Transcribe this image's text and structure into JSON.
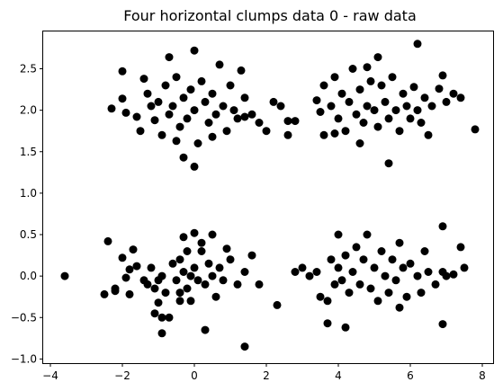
{
  "chart_data": {
    "type": "scatter",
    "title": "Four horizontal clumps data 0 - raw data",
    "xlabel": "",
    "ylabel": "",
    "xlim": [
      -4.2,
      8.3
    ],
    "ylim": [
      -1.05,
      2.95
    ],
    "grid": false,
    "legend": "none",
    "marker_color": "#000000",
    "x_ticks": [
      {
        "value": -4,
        "label": "−4"
      },
      {
        "value": -2,
        "label": "−2"
      },
      {
        "value": 0,
        "label": "0"
      },
      {
        "value": 2,
        "label": "2"
      },
      {
        "value": 4,
        "label": "4"
      },
      {
        "value": 6,
        "label": "6"
      },
      {
        "value": 8,
        "label": "8"
      }
    ],
    "y_ticks": [
      {
        "value": -1.0,
        "label": "−1.0"
      },
      {
        "value": -0.5,
        "label": "−0.5"
      },
      {
        "value": 0.0,
        "label": "0.0"
      },
      {
        "value": 0.5,
        "label": "0.5"
      },
      {
        "value": 1.0,
        "label": "1.0"
      },
      {
        "value": 1.5,
        "label": "1.5"
      },
      {
        "value": 2.0,
        "label": "2.0"
      },
      {
        "value": 2.5,
        "label": "2.5"
      }
    ],
    "series": [
      {
        "color": "#000000",
        "points": [
          [
            -3.6,
            0.0
          ],
          [
            -2.4,
            0.42
          ],
          [
            -2.5,
            -0.22
          ],
          [
            -2.2,
            -0.18
          ],
          [
            -2.2,
            -0.15
          ],
          [
            -2.0,
            0.22
          ],
          [
            -1.9,
            -0.02
          ],
          [
            -1.8,
            -0.22
          ],
          [
            -1.8,
            0.08
          ],
          [
            -1.7,
            0.32
          ],
          [
            -1.6,
            0.12
          ],
          [
            -1.4,
            -0.05
          ],
          [
            -1.3,
            -0.1
          ],
          [
            -1.2,
            0.1
          ],
          [
            -1.1,
            -0.15
          ],
          [
            -1.0,
            -0.32
          ],
          [
            -1.0,
            -0.05
          ],
          [
            -0.9,
            0.0
          ],
          [
            -0.8,
            -0.2
          ],
          [
            -0.9,
            -0.5
          ],
          [
            -1.1,
            -0.45
          ],
          [
            -0.7,
            -0.5
          ],
          [
            -0.6,
            0.15
          ],
          [
            -0.4,
            0.2
          ],
          [
            -0.5,
            -0.05
          ],
          [
            -0.4,
            -0.2
          ],
          [
            -0.3,
            0.05
          ],
          [
            -0.2,
            -0.15
          ],
          [
            -0.1,
            0.0
          ],
          [
            -0.1,
            -0.3
          ],
          [
            0.0,
            0.1
          ],
          [
            0.1,
            -0.05
          ],
          [
            0.2,
            0.3
          ],
          [
            0.3,
            -0.1
          ],
          [
            0.4,
            0.15
          ],
          [
            0.5,
            0.0
          ],
          [
            0.6,
            -0.25
          ],
          [
            0.7,
            0.1
          ],
          [
            0.8,
            -0.05
          ],
          [
            1.0,
            0.2
          ],
          [
            1.2,
            -0.1
          ],
          [
            1.4,
            0.05
          ],
          [
            1.6,
            0.25
          ],
          [
            1.8,
            -0.1
          ],
          [
            0.3,
            -0.65
          ],
          [
            -0.3,
            0.47
          ],
          [
            0.0,
            0.52
          ],
          [
            0.5,
            0.5
          ],
          [
            -0.4,
            -0.3
          ],
          [
            1.4,
            -0.85
          ],
          [
            2.3,
            -0.35
          ],
          [
            -0.9,
            -0.69
          ],
          [
            0.2,
            0.4
          ],
          [
            -0.2,
            0.3
          ],
          [
            0.9,
            0.33
          ],
          [
            2.8,
            0.05
          ],
          [
            3.0,
            0.1
          ],
          [
            3.2,
            0.0
          ],
          [
            3.4,
            0.05
          ],
          [
            3.5,
            -0.25
          ],
          [
            3.7,
            -0.3
          ],
          [
            3.8,
            0.2
          ],
          [
            3.9,
            -0.1
          ],
          [
            4.0,
            0.1
          ],
          [
            4.1,
            -0.05
          ],
          [
            4.2,
            0.25
          ],
          [
            4.3,
            -0.2
          ],
          [
            4.4,
            0.05
          ],
          [
            4.5,
            0.35
          ],
          [
            4.6,
            -0.1
          ],
          [
            4.7,
            0.2
          ],
          [
            4.8,
            0.5
          ],
          [
            4.9,
            -0.15
          ],
          [
            5.0,
            0.1
          ],
          [
            5.1,
            -0.3
          ],
          [
            5.2,
            0.3
          ],
          [
            5.3,
            0.0
          ],
          [
            5.4,
            -0.2
          ],
          [
            5.5,
            0.2
          ],
          [
            5.6,
            -0.05
          ],
          [
            5.7,
            0.4
          ],
          [
            5.8,
            0.1
          ],
          [
            5.9,
            -0.25
          ],
          [
            6.0,
            0.15
          ],
          [
            6.2,
            0.0
          ],
          [
            6.3,
            -0.2
          ],
          [
            6.4,
            0.3
          ],
          [
            6.5,
            0.05
          ],
          [
            6.7,
            -0.1
          ],
          [
            6.9,
            0.05
          ],
          [
            7.0,
            0.0
          ],
          [
            7.2,
            0.02
          ],
          [
            7.4,
            0.35
          ],
          [
            7.5,
            0.1
          ],
          [
            6.9,
            -0.58
          ],
          [
            6.9,
            0.6
          ],
          [
            4.0,
            0.5
          ],
          [
            3.7,
            -0.57
          ],
          [
            4.2,
            -0.62
          ],
          [
            5.7,
            -0.38
          ],
          [
            -2.3,
            2.02
          ],
          [
            -2.0,
            2.47
          ],
          [
            -2.0,
            2.14
          ],
          [
            -1.9,
            1.97
          ],
          [
            -1.6,
            1.92
          ],
          [
            -1.5,
            1.75
          ],
          [
            -1.4,
            2.38
          ],
          [
            -1.3,
            2.2
          ],
          [
            -1.2,
            2.05
          ],
          [
            -1.1,
            1.88
          ],
          [
            -1.0,
            2.1
          ],
          [
            -0.9,
            1.7
          ],
          [
            -0.8,
            2.3
          ],
          [
            -0.7,
            1.95
          ],
          [
            -0.6,
            2.05
          ],
          [
            -0.5,
            2.4
          ],
          [
            -0.4,
            1.8
          ],
          [
            -0.3,
            2.15
          ],
          [
            -0.2,
            1.9
          ],
          [
            -0.1,
            2.25
          ],
          [
            0.0,
            2.0
          ],
          [
            0.1,
            1.6
          ],
          [
            0.2,
            2.35
          ],
          [
            0.3,
            2.1
          ],
          [
            0.4,
            1.85
          ],
          [
            0.5,
            2.2
          ],
          [
            0.6,
            1.95
          ],
          [
            0.7,
            2.55
          ],
          [
            0.8,
            2.05
          ],
          [
            0.9,
            1.75
          ],
          [
            1.0,
            2.3
          ],
          [
            1.1,
            2.0
          ],
          [
            1.2,
            1.9
          ],
          [
            1.4,
            2.15
          ],
          [
            1.6,
            1.95
          ],
          [
            1.8,
            1.85
          ],
          [
            2.0,
            1.75
          ],
          [
            2.2,
            2.1
          ],
          [
            2.4,
            2.05
          ],
          [
            2.6,
            1.87
          ],
          [
            2.8,
            1.87
          ],
          [
            2.6,
            1.7
          ],
          [
            0.0,
            2.72
          ],
          [
            -0.7,
            2.64
          ],
          [
            0.0,
            1.32
          ],
          [
            -0.3,
            1.43
          ],
          [
            1.3,
            2.48
          ],
          [
            1.4,
            1.92
          ],
          [
            0.5,
            1.68
          ],
          [
            -0.5,
            1.63
          ],
          [
            3.4,
            2.12
          ],
          [
            3.6,
            2.3
          ],
          [
            3.6,
            1.7
          ],
          [
            3.8,
            2.05
          ],
          [
            3.9,
            2.4
          ],
          [
            4.0,
            1.9
          ],
          [
            4.1,
            2.2
          ],
          [
            4.2,
            1.75
          ],
          [
            4.3,
            2.1
          ],
          [
            4.4,
            2.5
          ],
          [
            4.5,
            1.95
          ],
          [
            4.6,
            2.25
          ],
          [
            4.7,
            1.85
          ],
          [
            4.8,
            2.05
          ],
          [
            4.9,
            2.35
          ],
          [
            5.0,
            2.0
          ],
          [
            5.1,
            1.8
          ],
          [
            5.2,
            2.3
          ],
          [
            5.3,
            2.1
          ],
          [
            5.4,
            1.9
          ],
          [
            5.5,
            2.4
          ],
          [
            5.6,
            2.0
          ],
          [
            5.7,
            1.75
          ],
          [
            5.8,
            2.2
          ],
          [
            5.9,
            2.05
          ],
          [
            6.0,
            1.9
          ],
          [
            6.1,
            2.28
          ],
          [
            6.2,
            2.0
          ],
          [
            6.3,
            1.85
          ],
          [
            6.4,
            2.15
          ],
          [
            6.6,
            2.05
          ],
          [
            6.8,
            2.26
          ],
          [
            7.0,
            2.1
          ],
          [
            7.2,
            2.2
          ],
          [
            7.4,
            2.15
          ],
          [
            7.8,
            1.77
          ],
          [
            6.2,
            2.8
          ],
          [
            5.4,
            1.36
          ],
          [
            6.5,
            1.7
          ],
          [
            4.8,
            2.52
          ],
          [
            5.1,
            2.64
          ],
          [
            3.5,
            1.98
          ],
          [
            3.9,
            1.72
          ],
          [
            4.6,
            1.6
          ],
          [
            6.9,
            2.42
          ]
        ]
      }
    ]
  }
}
